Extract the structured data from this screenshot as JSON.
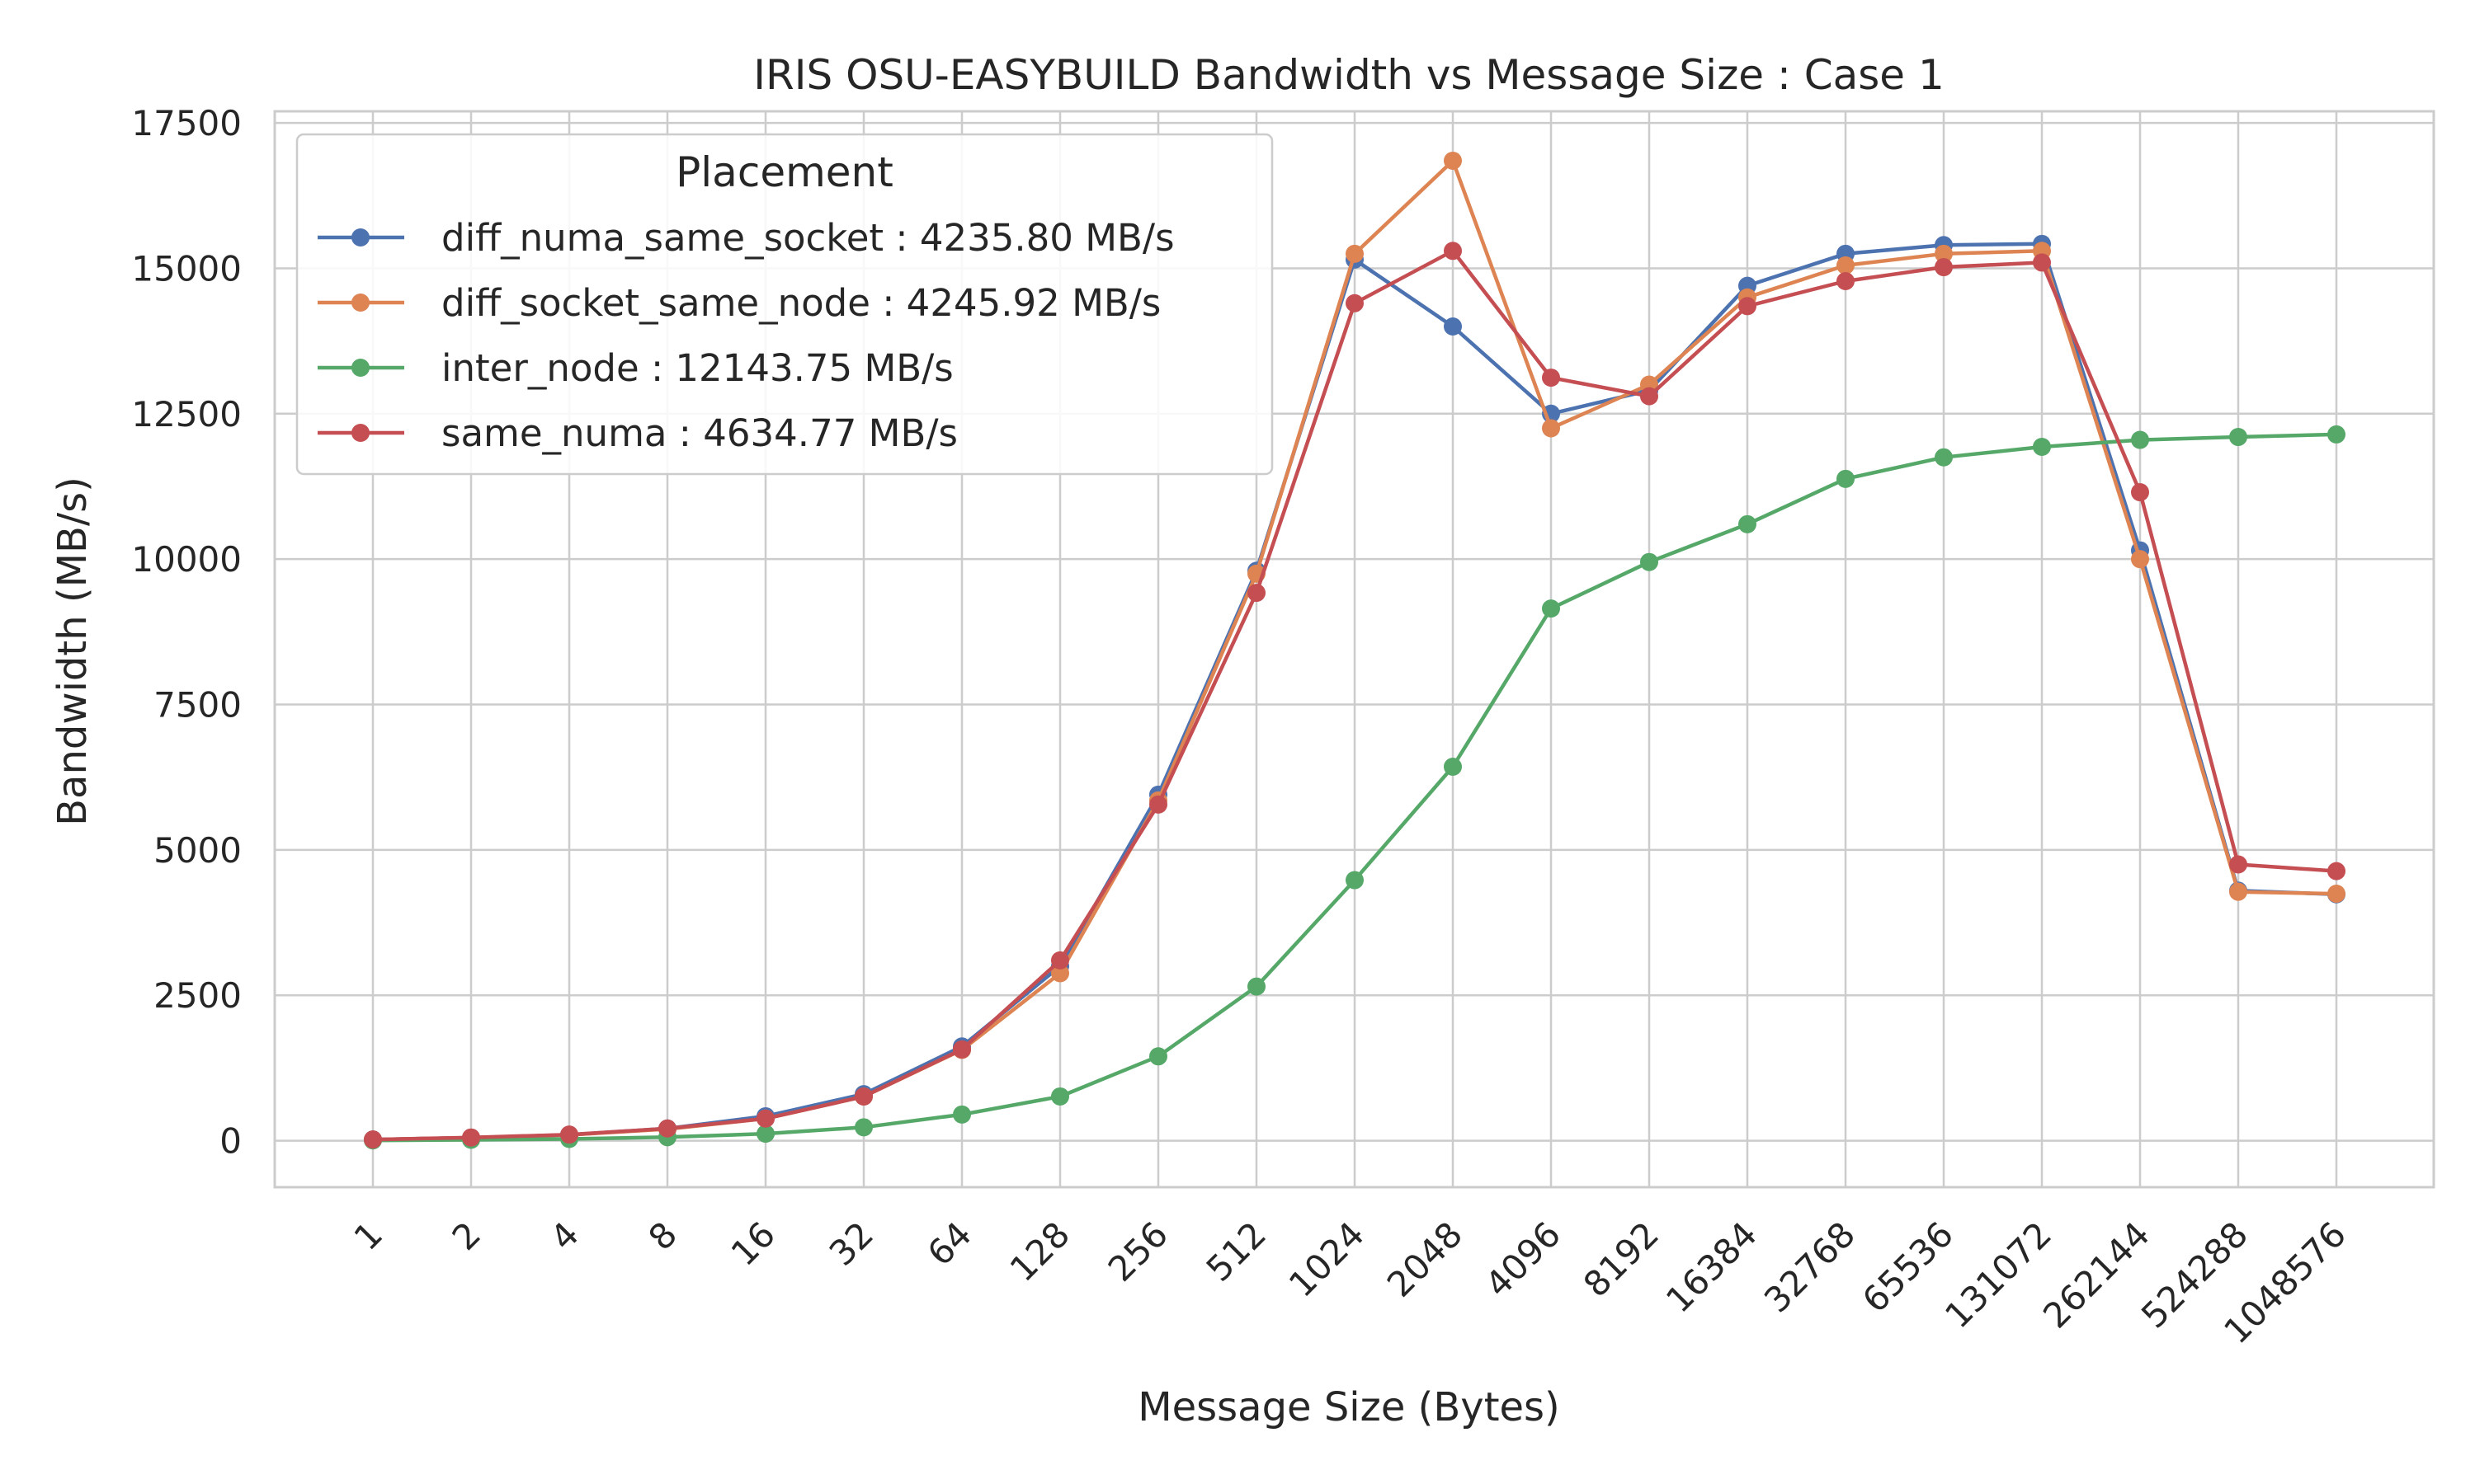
{
  "chart_data": {
    "type": "line",
    "title": "IRIS OSU-EASYBUILD Bandwidth vs Message Size : Case 1",
    "xlabel": "Message Size (Bytes)",
    "ylabel": "Bandwidth (MB/s)",
    "categories": [
      "1",
      "2",
      "4",
      "8",
      "16",
      "32",
      "64",
      "128",
      "256",
      "512",
      "1024",
      "2048",
      "4096",
      "8192",
      "16384",
      "32768",
      "65536",
      "131072",
      "262144",
      "524288",
      "1048576"
    ],
    "yticks": [
      0,
      2500,
      5000,
      7500,
      10000,
      12500,
      15000,
      17500
    ],
    "ytick_labels": [
      "0",
      "2500",
      "5000",
      "7500",
      "10000",
      "12500",
      "15000",
      "17500"
    ],
    "ylim": [
      -800,
      17700
    ],
    "grid": true,
    "legend": {
      "title": "Placement",
      "placement": "top-left"
    },
    "series": [
      {
        "name": "diff_numa_same_socket : 4235.80 MB/s",
        "color": "#4c72b0",
        "values": [
          20,
          50,
          100,
          210,
          420,
          800,
          1620,
          3000,
          5950,
          9800,
          15150,
          14000,
          12500,
          12900,
          14700,
          15250,
          15400,
          15420,
          10150,
          4300,
          4236
        ]
      },
      {
        "name": "diff_socket_same_node : 4245.92 MB/s",
        "color": "#dd8452",
        "values": [
          20,
          50,
          100,
          200,
          380,
          760,
          1560,
          2880,
          5850,
          9750,
          15250,
          16850,
          12250,
          13000,
          14500,
          15050,
          15250,
          15300,
          10000,
          4280,
          4246
        ]
      },
      {
        "name": "inter_node : 12143.75 MB/s",
        "color": "#55a868",
        "values": [
          5,
          15,
          30,
          60,
          120,
          230,
          450,
          760,
          1450,
          2650,
          4480,
          6430,
          9150,
          9950,
          10600,
          11380,
          11750,
          11930,
          12050,
          12100,
          12144
        ]
      },
      {
        "name": "same_numa : 4634.77 MB/s",
        "color": "#c44e52",
        "values": [
          20,
          55,
          105,
          210,
          380,
          760,
          1570,
          3100,
          5780,
          9420,
          14400,
          15300,
          13120,
          12800,
          14350,
          14780,
          15020,
          15100,
          11150,
          4750,
          4635
        ]
      }
    ]
  }
}
